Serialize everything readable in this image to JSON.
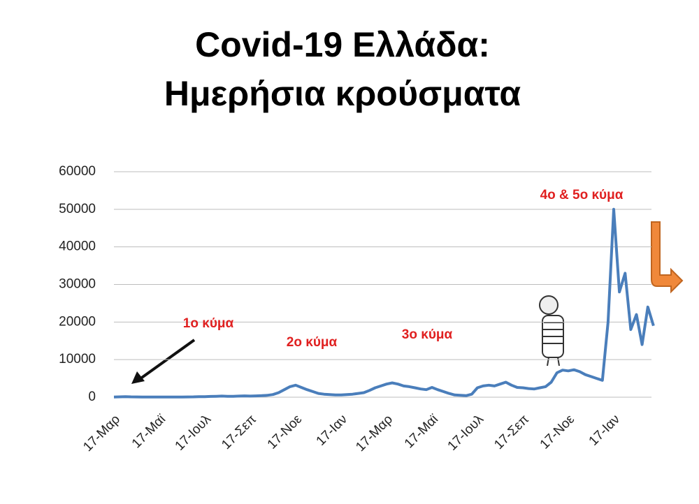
{
  "chart_data": {
    "type": "line",
    "title": [
      "Covid-19 Ελλάδα:",
      "Ημερήσια κρούσματα"
    ],
    "categories": [
      "17-Μαρ",
      null,
      null,
      null,
      null,
      null,
      null,
      null,
      "17-Μαϊ",
      null,
      null,
      null,
      null,
      null,
      null,
      null,
      "17-Ιουλ",
      null,
      null,
      null,
      null,
      null,
      null,
      null,
      "17-Σεπ",
      null,
      null,
      null,
      null,
      null,
      null,
      null,
      "17-Νοε",
      null,
      null,
      null,
      null,
      null,
      null,
      null,
      "17-Ιαν",
      null,
      null,
      null,
      null,
      null,
      null,
      null,
      "17-Μαρ",
      null,
      null,
      null,
      null,
      null,
      null,
      null,
      "17-Μαϊ",
      null,
      null,
      null,
      null,
      null,
      null,
      null,
      "17-Ιουλ",
      null,
      null,
      null,
      null,
      null,
      null,
      null,
      "17-Σεπ",
      null,
      null,
      null,
      null,
      null,
      null,
      null,
      "17-Νοε",
      null,
      null,
      null,
      null,
      null,
      null,
      null,
      "17-Ιαν",
      null,
      null,
      null,
      null,
      null,
      null,
      null
    ],
    "series": [
      {
        "name": "Ημερήσια κρούσματα",
        "color": "#4a7ebb",
        "values": [
          50,
          100,
          150,
          100,
          80,
          60,
          50,
          40,
          30,
          30,
          40,
          50,
          60,
          80,
          100,
          150,
          150,
          200,
          250,
          300,
          250,
          250,
          300,
          350,
          300,
          350,
          400,
          500,
          700,
          1200,
          2000,
          2800,
          3200,
          2600,
          2000,
          1500,
          1000,
          800,
          700,
          600,
          600,
          700,
          800,
          1000,
          1200,
          1800,
          2500,
          3000,
          3500,
          3800,
          3500,
          3000,
          2800,
          2500,
          2200,
          2000,
          2600,
          2000,
          1500,
          1000,
          600,
          500,
          400,
          800,
          2500,
          3000,
          3200,
          3000,
          3500,
          4000,
          3200,
          2600,
          2500,
          2300,
          2200,
          2500,
          2800,
          4000,
          6500,
          7200,
          7000,
          7300,
          6800,
          6000,
          5500,
          5000,
          4500,
          20000,
          50000,
          28000,
          33000,
          18000,
          22000,
          14000,
          24000,
          19000
        ]
      }
    ],
    "ylim": [
      0,
      60000
    ],
    "yticks": [
      0,
      10000,
      20000,
      30000,
      40000,
      50000,
      60000
    ],
    "grid": true,
    "annotations": [
      "1ο κύμα",
      "2ο κύμα",
      "3ο κύμα",
      "4ο & 5ο κύμα"
    ]
  }
}
